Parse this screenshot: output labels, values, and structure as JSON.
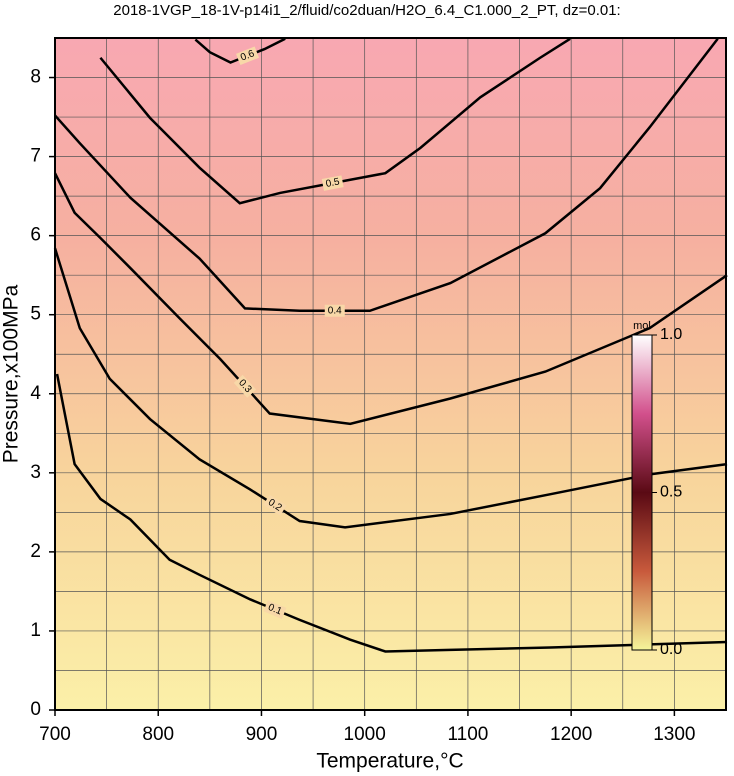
{
  "chart_data": {
    "type": "contour",
    "title": "2018-1VGP_18-1V-p14i1_2/fluid/co2duan/H2O_6.4_C1.000_2_PT, dz=0.01:",
    "x_label": "Temperature,°C",
    "y_label": "Pressure,x100MPa",
    "xlim": [
      700,
      1350
    ],
    "ylim": [
      0,
      8.5
    ],
    "xticks": [
      700,
      800,
      900,
      1000,
      1100,
      1200,
      1300
    ],
    "yticks": [
      0,
      1,
      2,
      3,
      4,
      5,
      6,
      7,
      8
    ],
    "xgrid": [
      750,
      800,
      850,
      900,
      950,
      1000,
      1050,
      1100,
      1150,
      1200,
      1250,
      1300
    ],
    "ygrid": [
      0.5,
      1,
      1.5,
      2,
      2.5,
      3,
      3.5,
      4,
      4.5,
      5,
      5.5,
      6,
      6.5,
      7,
      7.5,
      8
    ],
    "grid": true,
    "series": [
      {
        "name": "0.1",
        "color": "#000000",
        "x": [
          702,
          719,
          744,
          773,
          811,
          840,
          889,
          937,
          986,
          1020,
          1083,
          1180,
          1276,
          1351
        ],
        "values": [
          4.25,
          3.11,
          2.67,
          2.41,
          1.9,
          1.71,
          1.4,
          1.14,
          0.89,
          0.74,
          0.76,
          0.79,
          0.83,
          0.86
        ]
      },
      {
        "name": "0.2",
        "color": "#000000",
        "x": [
          700,
          724,
          753,
          792,
          840,
          889,
          937,
          981,
          1083,
          1180,
          1276,
          1351
        ],
        "values": [
          5.84,
          4.83,
          4.19,
          3.68,
          3.17,
          2.79,
          2.39,
          2.31,
          2.48,
          2.73,
          2.98,
          3.11
        ]
      },
      {
        "name": "0.3",
        "color": "#000000",
        "x": [
          700,
          719,
          744,
          773,
          821,
          860,
          908,
          986,
          1083,
          1175,
          1276,
          1351
        ],
        "values": [
          6.79,
          6.29,
          5.97,
          5.59,
          4.95,
          4.44,
          3.75,
          3.62,
          3.94,
          4.28,
          4.83,
          5.5
        ]
      },
      {
        "name": "0.4",
        "color": "#000000",
        "x": [
          700,
          724,
          773,
          840,
          884,
          937,
          1005,
          1083,
          1175,
          1228,
          1276,
          1342
        ],
        "values": [
          7.52,
          7.17,
          6.48,
          5.71,
          5.08,
          5.05,
          5.05,
          5.4,
          6.03,
          6.6,
          7.37,
          8.49
        ]
      },
      {
        "name": "0.5",
        "color": "#000000",
        "x": [
          744,
          792,
          840,
          879,
          918,
          1020,
          1054,
          1112,
          1170,
          1199
        ],
        "values": [
          8.25,
          7.49,
          6.86,
          6.41,
          6.54,
          6.79,
          7.11,
          7.75,
          8.25,
          8.49
        ]
      },
      {
        "name": "0.6",
        "color": "#000000",
        "x": [
          836,
          850,
          870,
          903,
          923
        ],
        "values": [
          8.48,
          8.32,
          8.19,
          8.36,
          8.49
        ]
      }
    ],
    "colorbar": {
      "label": "mol",
      "lim": [
        0,
        1
      ],
      "ticks": [
        {
          "value": 0,
          "label": "0.0"
        },
        0.5,
        {
          "value": 1,
          "label": "1.0"
        }
      ],
      "colors": [
        "#f5f59a",
        "#c85a3c",
        "#5a0a14",
        "#d2508c",
        "#ffffff"
      ]
    }
  }
}
